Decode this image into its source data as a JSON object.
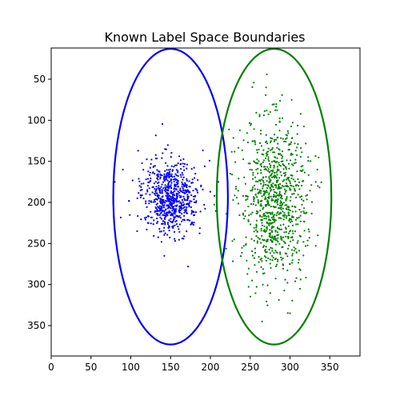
{
  "chart_data": {
    "type": "scatter",
    "title": "Known Label Space Boundaries",
    "xlabel": "",
    "ylabel": "",
    "xlim": [
      0,
      388
    ],
    "ylim": [
      387,
      12
    ],
    "y_inverted": true,
    "xticks": [
      0,
      50,
      100,
      150,
      200,
      250,
      300,
      350
    ],
    "yticks": [
      50,
      100,
      150,
      200,
      250,
      300,
      350
    ],
    "grid": false,
    "legend": "none",
    "series": [
      {
        "color": "#0000ff",
        "marker": "dot",
        "point_count": 700,
        "center": [
          150,
          193
        ],
        "spread": [
          18,
          22
        ],
        "outliers": [
          [
            80,
            175
          ],
          [
            90,
            160
          ],
          [
            108,
            235
          ],
          [
            140,
            140
          ],
          [
            172,
            278
          ],
          [
            205,
            192
          ],
          [
            210,
            175
          ],
          [
            120,
            233
          ]
        ]
      },
      {
        "color": "#008000",
        "marker": "dot",
        "point_count": 900,
        "center": [
          280,
          195
        ],
        "spread": [
          20,
          48
        ],
        "outliers": [
          [
            225,
            165
          ],
          [
            230,
            245
          ],
          [
            270,
            60
          ],
          [
            265,
            345
          ],
          [
            300,
            335
          ],
          [
            335,
            240
          ]
        ]
      }
    ],
    "ellipses": [
      {
        "color": "#0000ff",
        "center": [
          150,
          193
        ],
        "semi_axes": [
          72,
          180
        ]
      },
      {
        "color": "#008000",
        "center": [
          280,
          193
        ],
        "semi_axes": [
          72,
          180
        ]
      }
    ]
  }
}
